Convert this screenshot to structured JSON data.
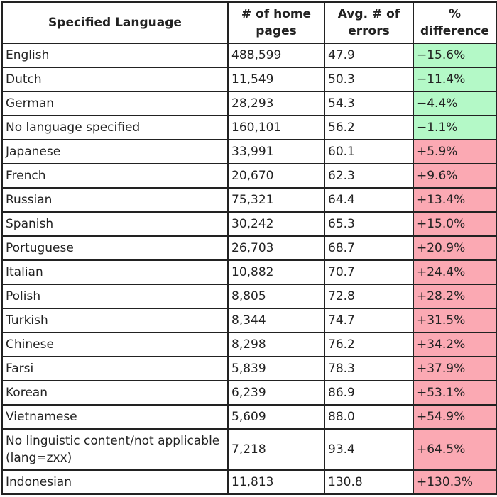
{
  "table": {
    "headers": {
      "language": "Specified Language",
      "pages": "# of home pages",
      "errors": "Avg. # of errors",
      "difference": "% difference"
    },
    "rows": [
      {
        "language": "English",
        "pages": "488,599",
        "errors": "47.9",
        "difference": "−15.6%",
        "sign": "negative"
      },
      {
        "language": "Dutch",
        "pages": "11,549",
        "errors": "50.3",
        "difference": "−11.4%",
        "sign": "negative"
      },
      {
        "language": "German",
        "pages": "28,293",
        "errors": "54.3",
        "difference": "−4.4%",
        "sign": "negative"
      },
      {
        "language": "No language specified",
        "pages": "160,101",
        "errors": "56.2",
        "difference": "−1.1%",
        "sign": "negative"
      },
      {
        "language": "Japanese",
        "pages": "33,991",
        "errors": "60.1",
        "difference": "+5.9%",
        "sign": "positive"
      },
      {
        "language": "French",
        "pages": "20,670",
        "errors": "62.3",
        "difference": "+9.6%",
        "sign": "positive"
      },
      {
        "language": "Russian",
        "pages": "75,321",
        "errors": "64.4",
        "difference": "+13.4%",
        "sign": "positive"
      },
      {
        "language": "Spanish",
        "pages": "30,242",
        "errors": "65.3",
        "difference": "+15.0%",
        "sign": "positive"
      },
      {
        "language": "Portuguese",
        "pages": "26,703",
        "errors": "68.7",
        "difference": "+20.9%",
        "sign": "positive"
      },
      {
        "language": "Italian",
        "pages": "10,882",
        "errors": "70.7",
        "difference": "+24.4%",
        "sign": "positive"
      },
      {
        "language": "Polish",
        "pages": "8,805",
        "errors": "72.8",
        "difference": "+28.2%",
        "sign": "positive"
      },
      {
        "language": "Turkish",
        "pages": "8,344",
        "errors": "74.7",
        "difference": "+31.5%",
        "sign": "positive"
      },
      {
        "language": "Chinese",
        "pages": "8,298",
        "errors": "76.2",
        "difference": "+34.2%",
        "sign": "positive"
      },
      {
        "language": "Farsi",
        "pages": "5,839",
        "errors": "78.3",
        "difference": "+37.9%",
        "sign": "positive"
      },
      {
        "language": "Korean",
        "pages": "6,239",
        "errors": "86.9",
        "difference": "+53.1%",
        "sign": "positive"
      },
      {
        "language": "Vietnamese",
        "pages": "5,609",
        "errors": "88.0",
        "difference": "+54.9%",
        "sign": "positive"
      },
      {
        "language": "No linguistic content/not applicable (lang=zxx)",
        "pages": "7,218",
        "errors": "93.4",
        "difference": "+64.5%",
        "sign": "positive"
      },
      {
        "language": "Indonesian",
        "pages": "11,813",
        "errors": "130.8",
        "difference": "+130.3%",
        "sign": "positive"
      }
    ]
  },
  "colors": {
    "negative_bg": "#b4f9c7",
    "positive_bg": "#fba9b3",
    "border": "#222222"
  }
}
